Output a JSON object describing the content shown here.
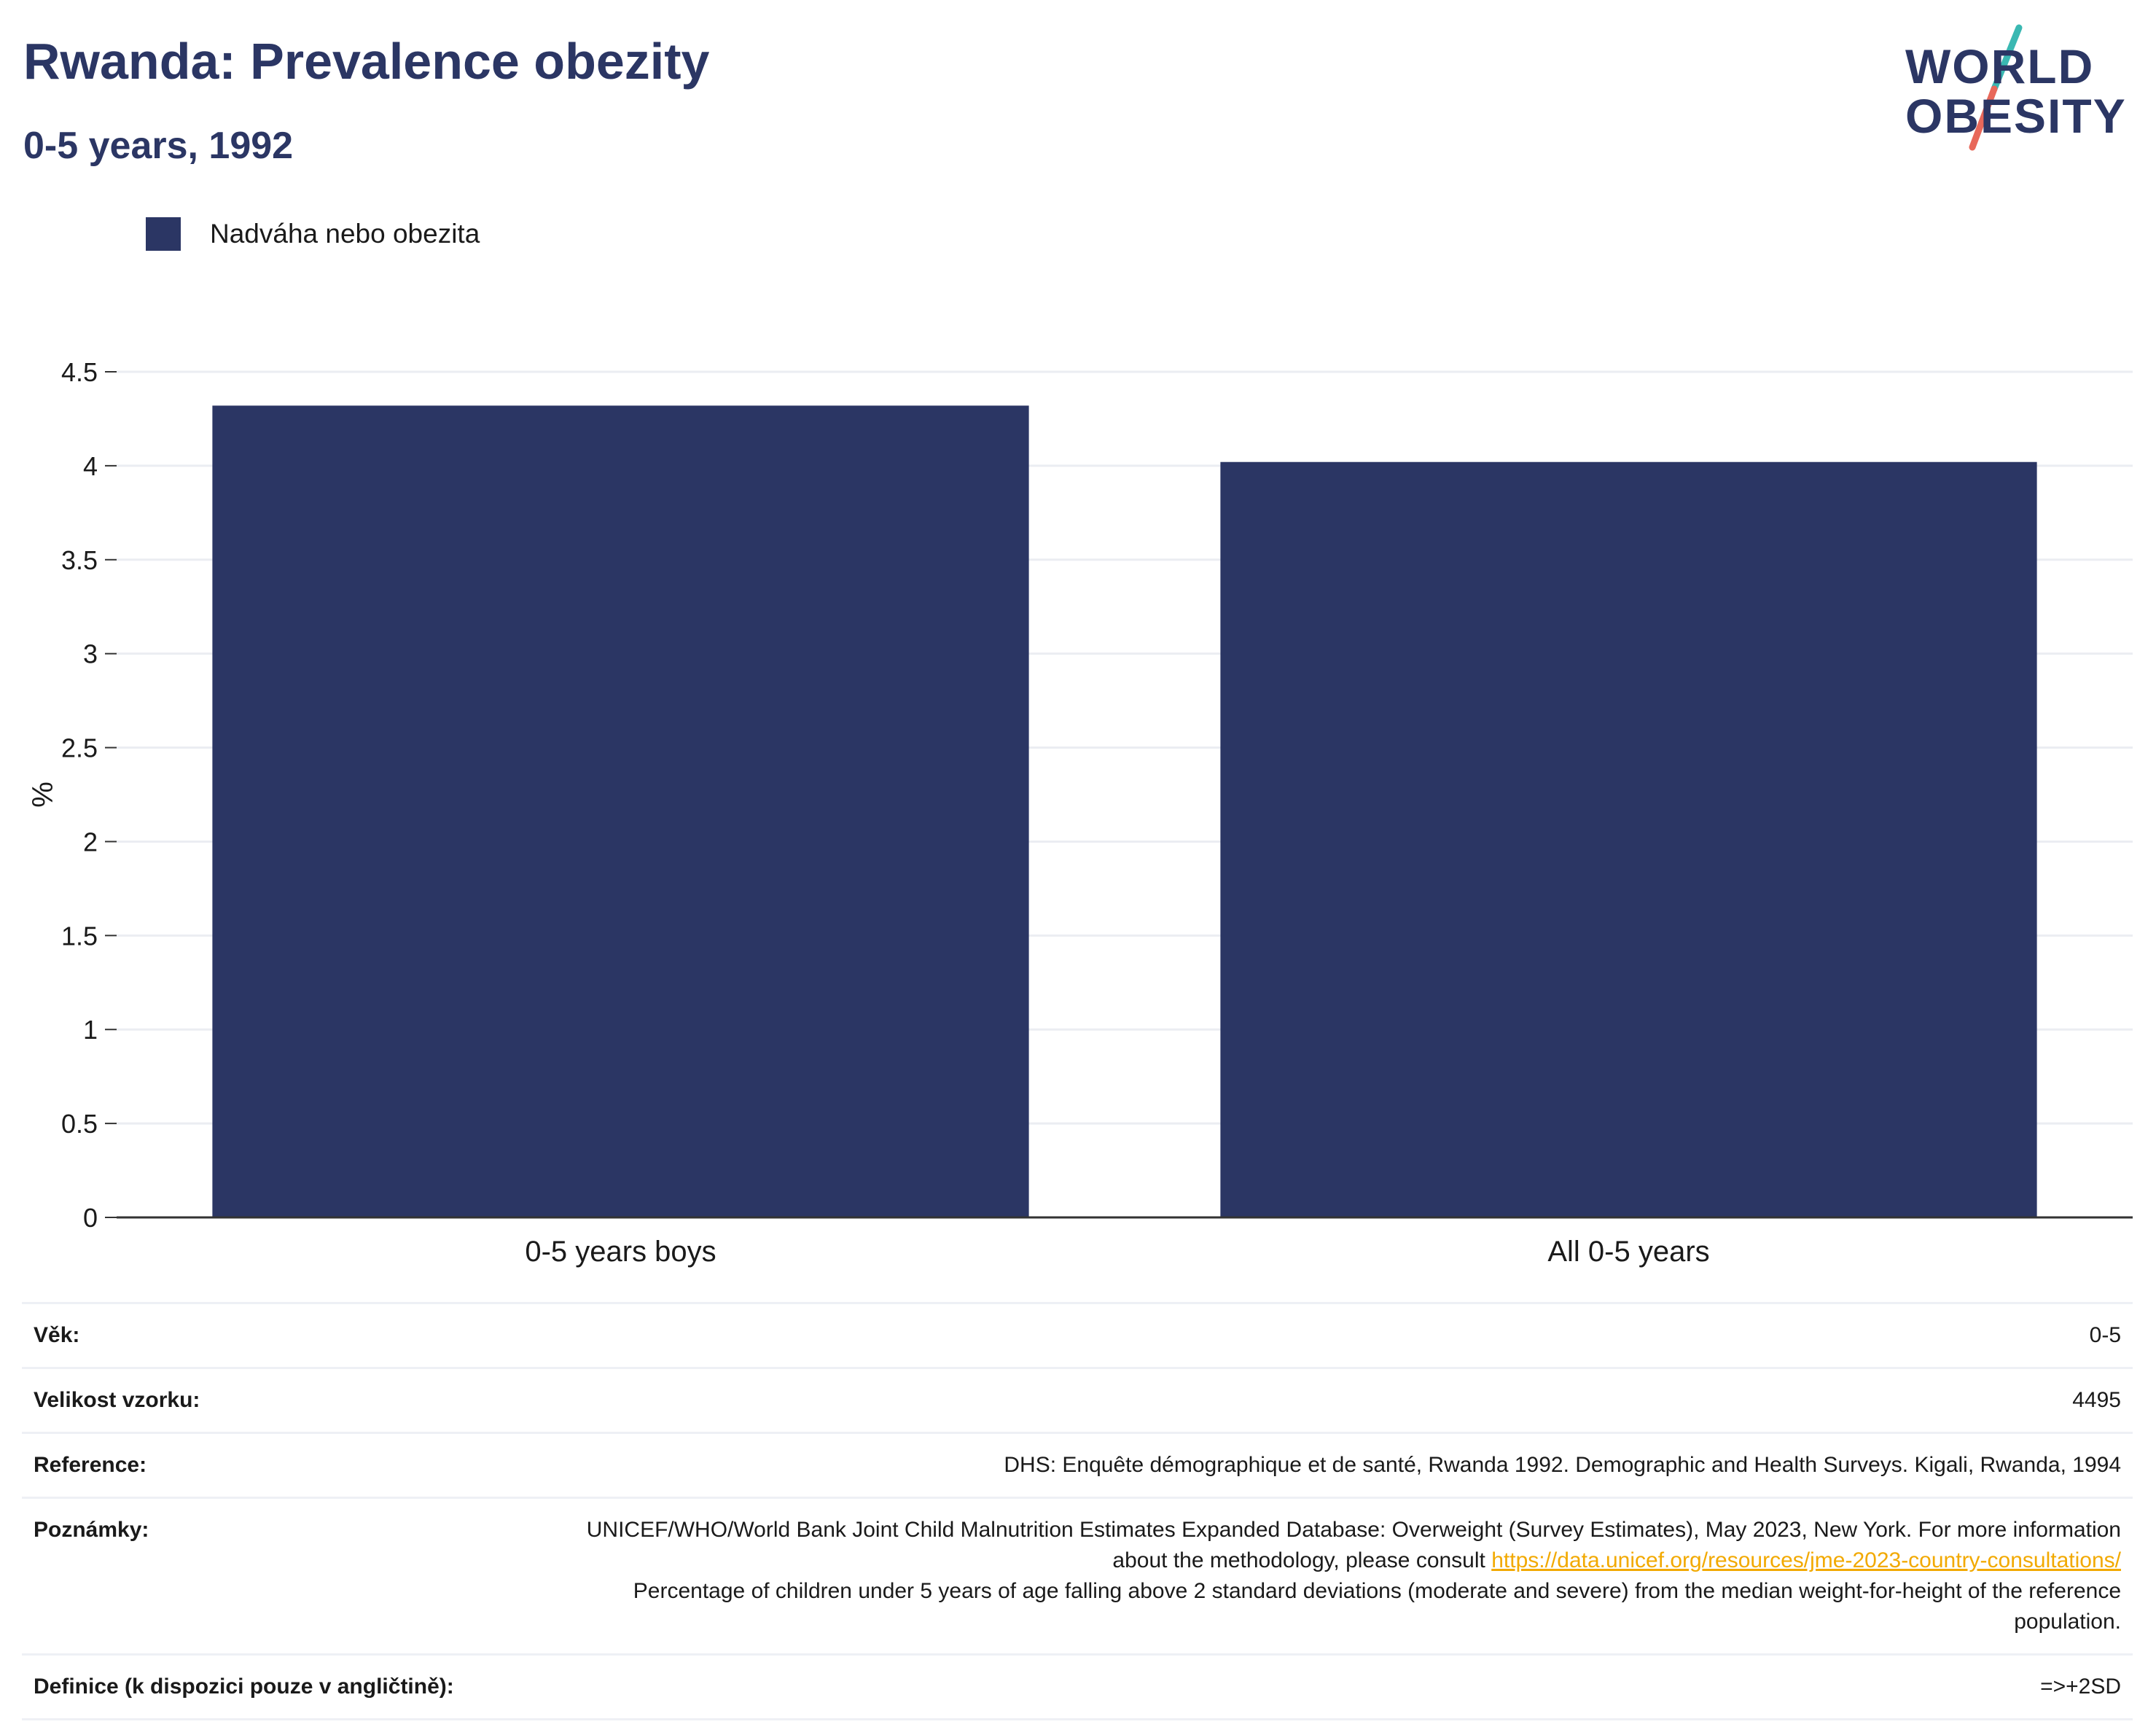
{
  "header": {
    "title": "Rwanda: Prevalence obezity",
    "subtitle": "0-5 years, 1992"
  },
  "logo": {
    "line1": "WORLD",
    "line2": "OBESITY"
  },
  "legend": {
    "label": "Nadváha nebo obezita",
    "color": "#2b3664"
  },
  "chart_data": {
    "type": "bar",
    "categories": [
      "0-5 years boys",
      "All 0-5 years"
    ],
    "series": [
      {
        "name": "Nadváha nebo obezita",
        "values": [
          4.32,
          4.02
        ],
        "color": "#2b3664"
      }
    ],
    "ylabel": "%",
    "xlabel": "",
    "ylim": [
      0,
      4.5
    ],
    "yticks": [
      "0",
      "0.5",
      "1",
      "1.5",
      "2",
      "2.5",
      "3",
      "3.5",
      "4",
      "4.5"
    ],
    "grid": true
  },
  "info": {
    "age_label": "Věk:",
    "age_value": "0-5",
    "sample_label": "Velikost vzorku:",
    "sample_value": "4495",
    "reference_label": "Reference:",
    "reference_value": "DHS: Enquête démographique et de santé, Rwanda 1992. Demographic and Health Surveys. Kigali, Rwanda, 1994",
    "notes_label": "Poznámky:",
    "notes_text_1": "UNICEF/WHO/World Bank Joint Child Malnutrition Estimates Expanded Database: Overweight (Survey Estimates), May 2023, New York. For more information about the methodology, please consult",
    "notes_link": "https://data.unicef.org/resources/jme-2023-country-consultations/",
    "notes_text_2": "Percentage of children under 5 years of age falling above 2 standard deviations (moderate and severe) from the median weight-for-height of the reference population.",
    "definition_label": "Definice (k dispozici pouze v angličtině):",
    "definition_value": "=>+2SD"
  }
}
